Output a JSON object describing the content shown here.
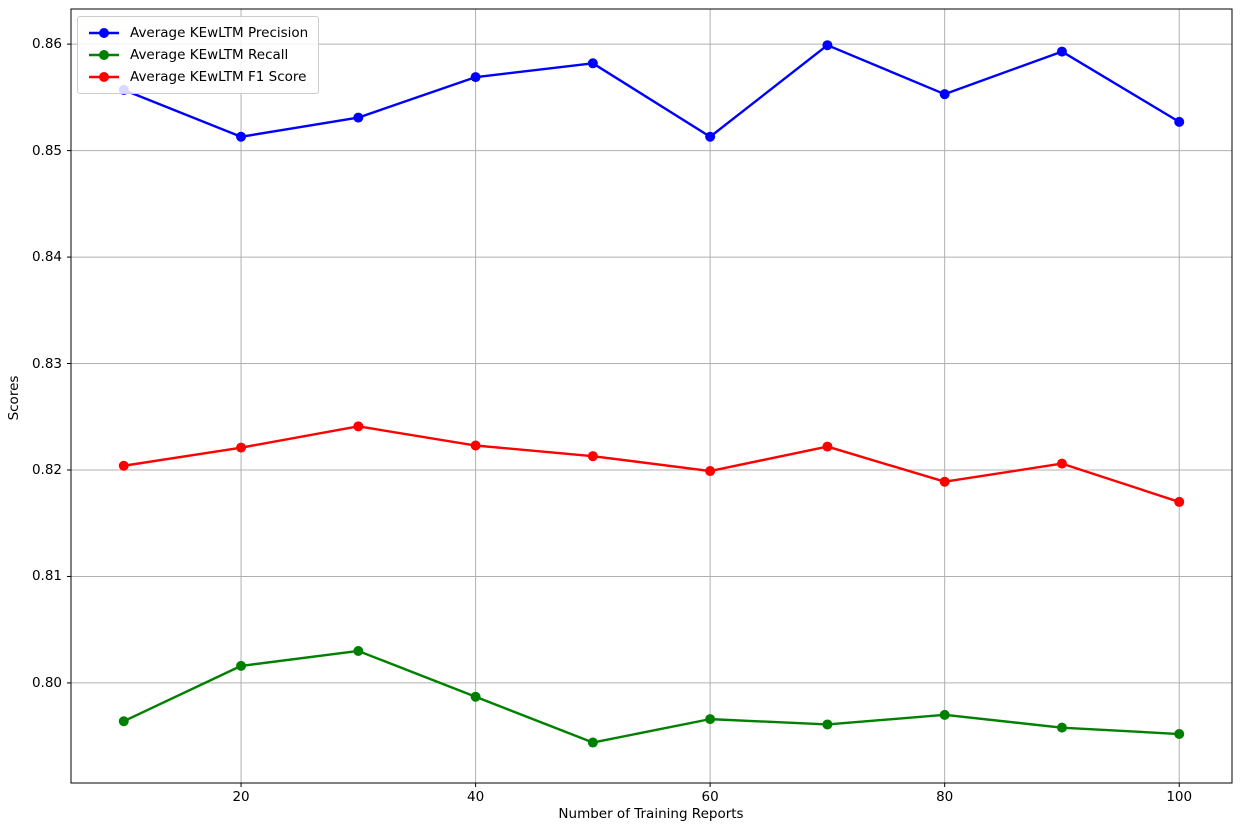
{
  "chart_data": {
    "type": "line",
    "title": "",
    "xlabel": "Number of Training Reports",
    "ylabel": "Scores",
    "x": [
      10,
      20,
      30,
      40,
      50,
      60,
      70,
      80,
      90,
      100
    ],
    "series": [
      {
        "name": "Average KEwLTM Precision",
        "color": "#0000ff",
        "marker": "circle",
        "values": [
          0.8557,
          0.8513,
          0.8531,
          0.8569,
          0.8582,
          0.8513,
          0.8599,
          0.8553,
          0.8593,
          0.8527
        ]
      },
      {
        "name": "Average KEwLTM Recall",
        "color": "#008000",
        "marker": "circle",
        "values": [
          0.7964,
          0.8016,
          0.803,
          0.7987,
          0.7944,
          0.7966,
          0.7961,
          0.797,
          0.7958,
          0.7952
        ]
      },
      {
        "name": "Average KEwLTM F1 Score",
        "color": "#ff0000",
        "marker": "circle",
        "values": [
          0.8204,
          0.8221,
          0.8241,
          0.8223,
          0.8213,
          0.8199,
          0.8222,
          0.8189,
          0.8206,
          0.817
        ]
      }
    ],
    "xticks": [
      20,
      40,
      60,
      80,
      100
    ],
    "xtick_labels": [
      "20",
      "40",
      "60",
      "80",
      "100"
    ],
    "yticks": [
      0.8,
      0.81,
      0.82,
      0.83,
      0.84,
      0.85,
      0.86
    ],
    "ytick_labels": [
      "0.80",
      "0.81",
      "0.82",
      "0.83",
      "0.84",
      "0.85",
      "0.86"
    ],
    "xlim": [
      5.5,
      104.5
    ],
    "ylim": [
      0.7906,
      0.8633
    ],
    "grid": true,
    "grid_color": "#b0b0b0",
    "axis_color": "#000000",
    "background_color": "#ffffff",
    "legend": {
      "position": "upper-left",
      "border_color": "#cccccc"
    }
  }
}
